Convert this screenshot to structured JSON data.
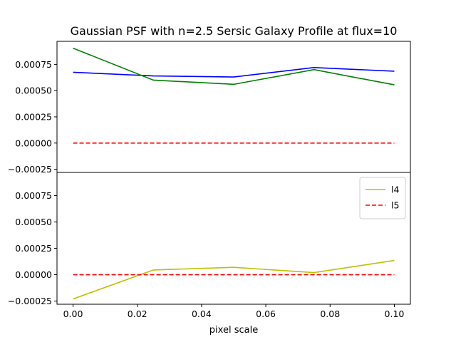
{
  "chart_data": [
    {
      "type": "line",
      "title": "Gaussian PSF with n=2.5 Sersic Galaxy Profile at flux=10",
      "ylim": [
        -0.00028,
        0.00097
      ],
      "yticks": [
        "0.00075",
        "0.00050",
        "0.00025",
        "0.00000",
        "−0.00025"
      ],
      "ytick_values": [
        0.00075,
        0.0005,
        0.00025,
        0.0,
        -0.00025
      ],
      "x": [
        0.0,
        0.025,
        0.05,
        0.075,
        0.1
      ],
      "series": [
        {
          "color": "#0000ff",
          "dashed": false,
          "values": [
            0.000675,
            0.00064,
            0.00063,
            0.00072,
            0.000685
          ]
        },
        {
          "color": "#008000",
          "dashed": false,
          "values": [
            0.000905,
            0.0006,
            0.00056,
            0.0007,
            0.000555
          ]
        },
        {
          "color": "#ff0000",
          "dashed": true,
          "values": [
            0.0,
            0.0,
            0.0,
            0.0,
            0.0
          ]
        }
      ],
      "legend": null
    },
    {
      "type": "line",
      "ylim": [
        -0.00028,
        0.00097
      ],
      "yticks": [
        "0.00075",
        "0.00050",
        "0.00025",
        "0.00000",
        "−0.00025"
      ],
      "ytick_values": [
        0.00075,
        0.0005,
        0.00025,
        0.0,
        -0.00025
      ],
      "x": [
        0.0,
        0.025,
        0.05,
        0.075,
        0.1
      ],
      "xlim": [
        -0.005,
        0.105
      ],
      "xticks": [
        "0.00",
        "0.02",
        "0.04",
        "0.06",
        "0.08",
        "0.10"
      ],
      "xtick_values": [
        0.0,
        0.02,
        0.04,
        0.06,
        0.08,
        0.1
      ],
      "xlabel": "pixel scale",
      "series": [
        {
          "name": "l4",
          "color": "#bfbf00",
          "dashed": false,
          "values": [
            -0.00023,
            4.5e-05,
            7e-05,
            2e-05,
            0.000135
          ]
        },
        {
          "name": "l5",
          "color": "#ff0000",
          "dashed": true,
          "values": [
            0.0,
            0.0,
            0.0,
            0.0,
            0.0
          ]
        }
      ],
      "legend": "top-right"
    }
  ]
}
